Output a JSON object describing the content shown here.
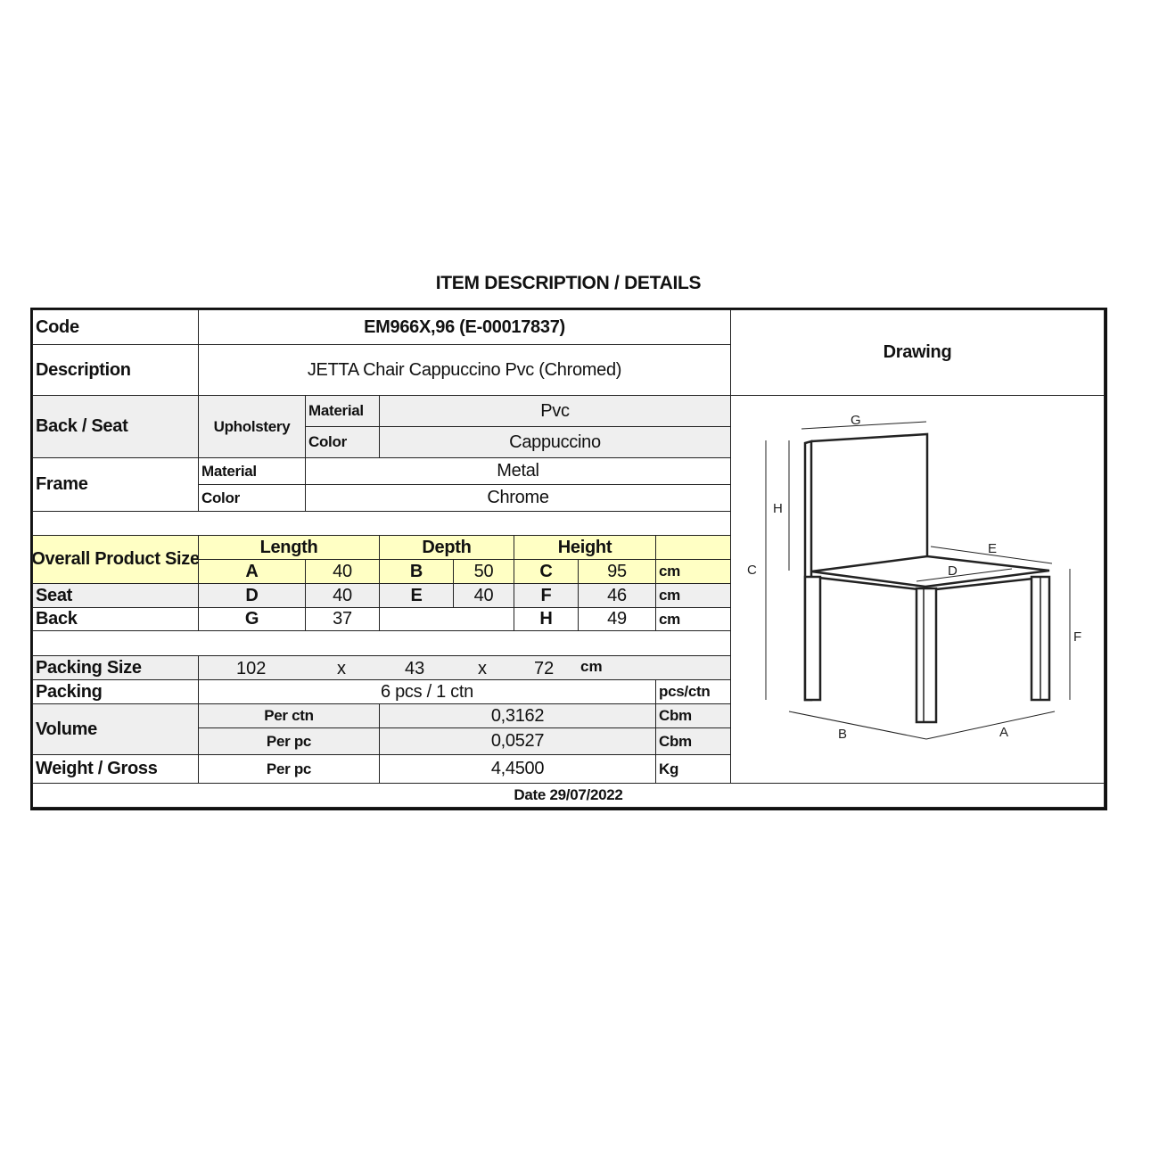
{
  "title": "ITEM DESCRIPTION / DETAILS",
  "code": {
    "label": "Code",
    "value": "EM966X,96 (E-00017837)"
  },
  "description": {
    "label": "Description",
    "value": "JETTA Chair Cappuccino Pvc (Chromed)"
  },
  "drawing": {
    "label": "Drawing",
    "dimension_labels": {
      "A": "A",
      "B": "B",
      "C": "C",
      "D": "D",
      "E": "E",
      "F": "F",
      "G": "G",
      "H": "H"
    }
  },
  "back_seat": {
    "label": "Back / Seat",
    "upholstery": "Upholstery",
    "material_label": "Material",
    "material": "Pvc",
    "color_label": "Color",
    "color": "Cappuccino"
  },
  "frame": {
    "label": "Frame",
    "material_label": "Material",
    "material": "Metal",
    "color_label": "Color",
    "color": "Chrome"
  },
  "size": {
    "label": "Overall Product Size",
    "headers": {
      "length": "Length",
      "depth": "Depth",
      "height": "Height"
    },
    "unit": "cm",
    "overall": {
      "A": "A",
      "A_val": "40",
      "B": "B",
      "B_val": "50",
      "C": "C",
      "C_val": "95"
    },
    "seat": {
      "label": "Seat",
      "D": "D",
      "D_val": "40",
      "E": "E",
      "E_val": "40",
      "F": "F",
      "F_val": "46"
    },
    "back": {
      "label": "Back",
      "G": "G",
      "G_val": "37",
      "H": "H",
      "H_val": "49"
    }
  },
  "packing_size": {
    "label": "Packing Size",
    "length": "102",
    "x1": "x",
    "depth": "43",
    "x2": "x",
    "height": "72",
    "unit": "cm"
  },
  "packing": {
    "label": "Packing",
    "value": "6 pcs / 1 ctn",
    "unit": "pcs/ctn"
  },
  "volume": {
    "label": "Volume",
    "per_ctn_label": "Per ctn",
    "per_ctn": "0,3162",
    "per_pc_label": "Per pc",
    "per_pc": "0,0527",
    "unit": "Cbm"
  },
  "weight": {
    "label": "Weight / Gross",
    "per_pc_label": "Per pc",
    "value": "4,4500",
    "unit": "Kg"
  },
  "date": "Date 29/07/2022",
  "colors": {
    "header_yellow": "#ffffc4",
    "row_gray": "#efefef",
    "border": "#111111"
  }
}
